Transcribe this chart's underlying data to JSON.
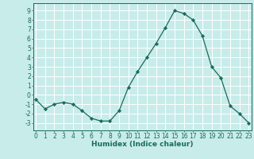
{
  "x": [
    0,
    1,
    2,
    3,
    4,
    5,
    6,
    7,
    8,
    9,
    10,
    11,
    12,
    13,
    14,
    15,
    16,
    17,
    18,
    19,
    20,
    21,
    22,
    23
  ],
  "y": [
    -0.5,
    -1.5,
    -1.0,
    -0.8,
    -1.0,
    -1.7,
    -2.5,
    -2.8,
    -2.8,
    -1.7,
    0.8,
    2.5,
    4.0,
    5.5,
    7.2,
    9.0,
    8.7,
    8.0,
    6.3,
    3.0,
    1.8,
    -1.2,
    -2.0,
    -3.0
  ],
  "line_color": "#1a6b5a",
  "marker": "D",
  "marker_size": 2.2,
  "bg_color": "#c8ecea",
  "grid_color": "#ffffff",
  "tick_color": "#1a6b5a",
  "label_color": "#1a6b5a",
  "xlabel": "Humidex (Indice chaleur)",
  "ylim": [
    -3.8,
    9.8
  ],
  "yticks": [
    -3,
    -2,
    -1,
    0,
    1,
    2,
    3,
    4,
    5,
    6,
    7,
    8,
    9
  ],
  "xticks": [
    0,
    1,
    2,
    3,
    4,
    5,
    6,
    7,
    8,
    9,
    10,
    11,
    12,
    13,
    14,
    15,
    16,
    17,
    18,
    19,
    20,
    21,
    22,
    23
  ],
  "xlim": [
    -0.3,
    23.3
  ],
  "label_fontsize": 6.5,
  "tick_fontsize": 5.5
}
